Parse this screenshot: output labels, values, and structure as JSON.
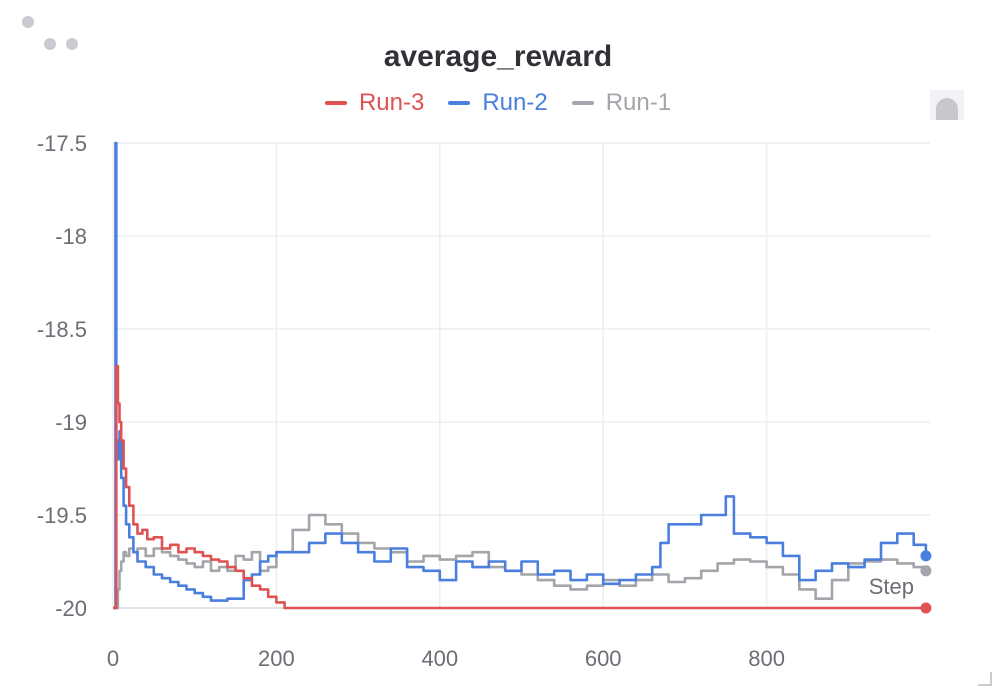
{
  "chart_data": {
    "type": "line",
    "title": "average_reward",
    "xlabel": "Step",
    "ylabel": "",
    "xlim": [
      0,
      1000
    ],
    "ylim": [
      -20,
      -17.5
    ],
    "xticks": [
      "0",
      "200",
      "400",
      "600",
      "800"
    ],
    "yticks": [
      "-17.5",
      "-18",
      "-18.5",
      "-19",
      "-19.5",
      "-20"
    ],
    "grid": true,
    "legend_position": "top-center",
    "series": [
      {
        "name": "Run-3",
        "color": "#e05252",
        "x": [
          0,
          3,
          4,
          6,
          8,
          10,
          13,
          16,
          20,
          25,
          30,
          36,
          42,
          50,
          60,
          70,
          80,
          90,
          100,
          110,
          120,
          130,
          140,
          150,
          160,
          170,
          180,
          190,
          200,
          210,
          250,
          300,
          400,
          500,
          600,
          700,
          800,
          900,
          995
        ],
        "y": [
          -20,
          -20,
          -18.7,
          -18.9,
          -19.0,
          -19.1,
          -19.25,
          -19.35,
          -19.45,
          -19.55,
          -19.6,
          -19.58,
          -19.63,
          -19.62,
          -19.68,
          -19.66,
          -19.7,
          -19.68,
          -19.7,
          -19.72,
          -19.74,
          -19.75,
          -19.78,
          -19.8,
          -19.84,
          -19.88,
          -19.9,
          -19.94,
          -19.97,
          -20,
          -20,
          -20,
          -20,
          -20,
          -20,
          -20,
          -20,
          -20,
          -20
        ]
      },
      {
        "name": "Run-2",
        "color": "#4a7fde",
        "x": [
          0,
          2,
          3,
          4,
          6,
          8,
          10,
          13,
          16,
          20,
          25,
          30,
          40,
          50,
          60,
          70,
          80,
          90,
          100,
          110,
          120,
          130,
          140,
          150,
          160,
          170,
          180,
          190,
          200,
          220,
          240,
          260,
          280,
          300,
          320,
          340,
          360,
          380,
          400,
          420,
          440,
          460,
          480,
          500,
          520,
          540,
          560,
          580,
          600,
          620,
          640,
          660,
          670,
          680,
          700,
          720,
          740,
          750,
          760,
          780,
          800,
          820,
          840,
          860,
          880,
          900,
          920,
          940,
          960,
          980,
          995
        ],
        "y": [
          -20,
          -20,
          -17.5,
          -19.1,
          -19.2,
          -19.05,
          -19.3,
          -19.45,
          -19.55,
          -19.62,
          -19.7,
          -19.75,
          -19.78,
          -19.82,
          -19.84,
          -19.86,
          -19.88,
          -19.9,
          -19.92,
          -19.94,
          -19.96,
          -19.96,
          -19.95,
          -19.95,
          -19.85,
          -19.82,
          -19.75,
          -19.72,
          -19.7,
          -19.7,
          -19.65,
          -19.6,
          -19.65,
          -19.7,
          -19.75,
          -19.68,
          -19.78,
          -19.8,
          -19.85,
          -19.75,
          -19.78,
          -19.75,
          -19.8,
          -19.75,
          -19.82,
          -19.8,
          -19.85,
          -19.82,
          -19.87,
          -19.85,
          -19.82,
          -19.78,
          -19.65,
          -19.55,
          -19.55,
          -19.5,
          -19.5,
          -19.4,
          -19.6,
          -19.62,
          -19.65,
          -19.72,
          -19.85,
          -19.8,
          -19.76,
          -19.78,
          -19.74,
          -19.65,
          -19.6,
          -19.66,
          -19.72
        ]
      },
      {
        "name": "Run-1",
        "color": "#a2a5aa",
        "x": [
          0,
          4,
          6,
          8,
          10,
          13,
          16,
          20,
          25,
          30,
          40,
          50,
          60,
          70,
          80,
          90,
          100,
          110,
          120,
          130,
          140,
          150,
          160,
          170,
          180,
          190,
          200,
          220,
          240,
          260,
          280,
          300,
          320,
          340,
          360,
          380,
          400,
          420,
          440,
          460,
          480,
          500,
          520,
          540,
          560,
          580,
          600,
          620,
          640,
          660,
          680,
          700,
          720,
          740,
          760,
          780,
          800,
          820,
          840,
          860,
          880,
          900,
          920,
          940,
          960,
          980,
          995
        ],
        "y": [
          -20,
          -20,
          -19.9,
          -19.8,
          -19.75,
          -19.7,
          -19.72,
          -19.68,
          -19.7,
          -19.68,
          -19.72,
          -19.68,
          -19.7,
          -19.72,
          -19.74,
          -19.76,
          -19.78,
          -19.75,
          -19.8,
          -19.78,
          -19.8,
          -19.72,
          -19.74,
          -19.7,
          -19.8,
          -19.78,
          -19.7,
          -19.58,
          -19.5,
          -19.55,
          -19.6,
          -19.65,
          -19.68,
          -19.7,
          -19.75,
          -19.72,
          -19.74,
          -19.72,
          -19.7,
          -19.78,
          -19.8,
          -19.82,
          -19.85,
          -19.88,
          -19.9,
          -19.88,
          -19.85,
          -19.88,
          -19.85,
          -19.82,
          -19.86,
          -19.84,
          -19.8,
          -19.76,
          -19.74,
          -19.75,
          -19.78,
          -19.82,
          -19.9,
          -19.95,
          -19.85,
          -19.76,
          -19.75,
          -19.74,
          -19.76,
          -19.78,
          -19.8
        ]
      }
    ]
  }
}
